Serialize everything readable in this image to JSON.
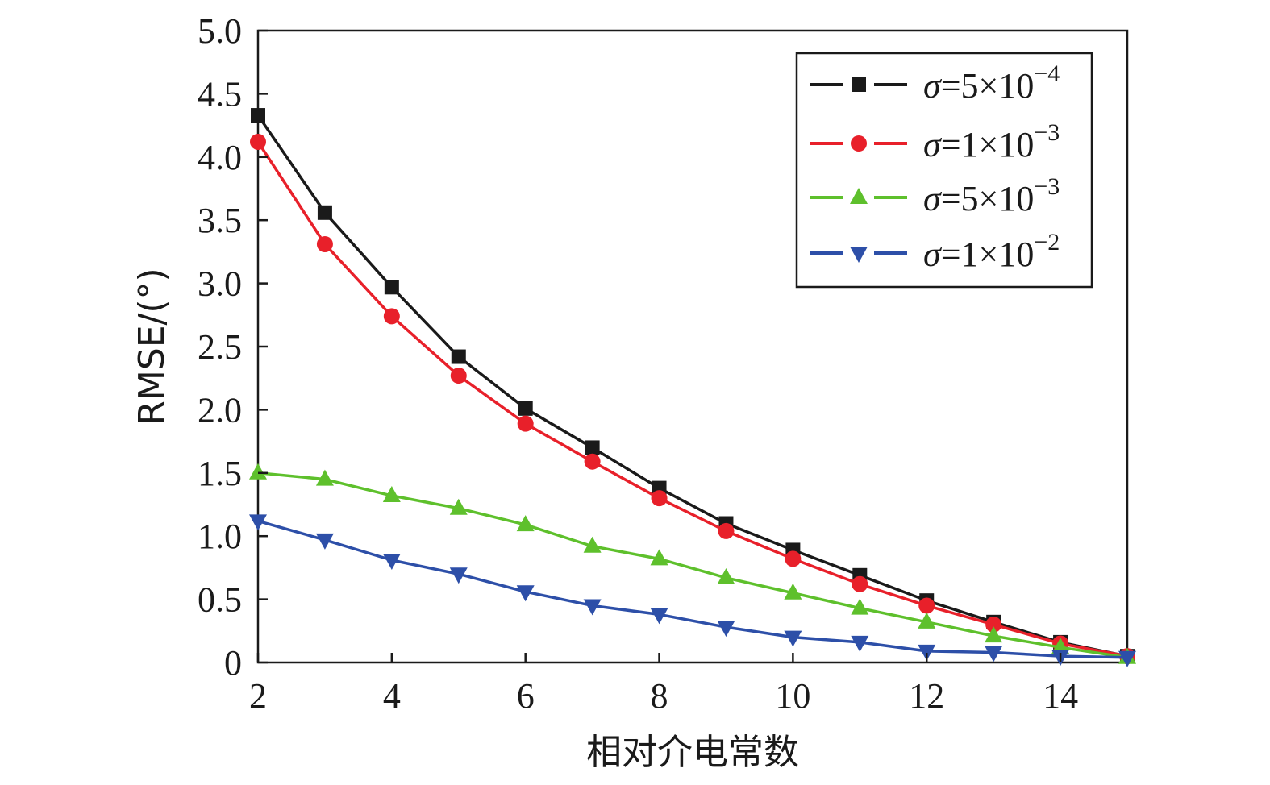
{
  "chart_data": {
    "type": "line",
    "xlabel": "相对介电常数",
    "ylabel": "RMSE/(°)",
    "xlim": [
      2,
      15
    ],
    "ylim": [
      0,
      5.0
    ],
    "xticks": [
      "2",
      "4",
      "6",
      "8",
      "10",
      "12",
      "14"
    ],
    "yticks": [
      "0",
      "0.5",
      "1.0",
      "1.5",
      "2.0",
      "2.5",
      "3.0",
      "3.5",
      "4.0",
      "4.5",
      "5.0"
    ],
    "grid": false,
    "legend_position": "top-right",
    "x": [
      2,
      3,
      4,
      5,
      6,
      7,
      8,
      9,
      10,
      11,
      12,
      13,
      14,
      15
    ],
    "series": [
      {
        "name": "σ=5×10−4",
        "name_main": "σ=5×10",
        "name_sup": "−4",
        "color": "#1a1a1a",
        "marker": "square",
        "values": [
          4.33,
          3.56,
          2.97,
          2.42,
          2.01,
          1.7,
          1.38,
          1.1,
          0.89,
          0.69,
          0.49,
          0.32,
          0.16,
          0.05
        ]
      },
      {
        "name": "σ=1×10−3",
        "name_main": "σ=1×10",
        "name_sup": "−3",
        "color": "#e8202a",
        "marker": "circle",
        "values": [
          4.12,
          3.31,
          2.74,
          2.27,
          1.89,
          1.59,
          1.3,
          1.04,
          0.82,
          0.62,
          0.45,
          0.3,
          0.15,
          0.05
        ]
      },
      {
        "name": "σ=5×10−3",
        "name_main": "σ=5×10",
        "name_sup": "−3",
        "color": "#5ec02c",
        "marker": "triangle-up",
        "values": [
          1.5,
          1.45,
          1.32,
          1.22,
          1.09,
          0.92,
          0.82,
          0.67,
          0.55,
          0.43,
          0.32,
          0.21,
          0.12,
          0.04
        ]
      },
      {
        "name": "σ=1×10−2",
        "name_main": "σ=1×10",
        "name_sup": "−2",
        "color": "#2d4fa8",
        "marker": "triangle-down",
        "values": [
          1.12,
          0.97,
          0.81,
          0.7,
          0.56,
          0.45,
          0.38,
          0.28,
          0.2,
          0.16,
          0.09,
          0.08,
          0.05,
          0.04
        ]
      }
    ]
  }
}
